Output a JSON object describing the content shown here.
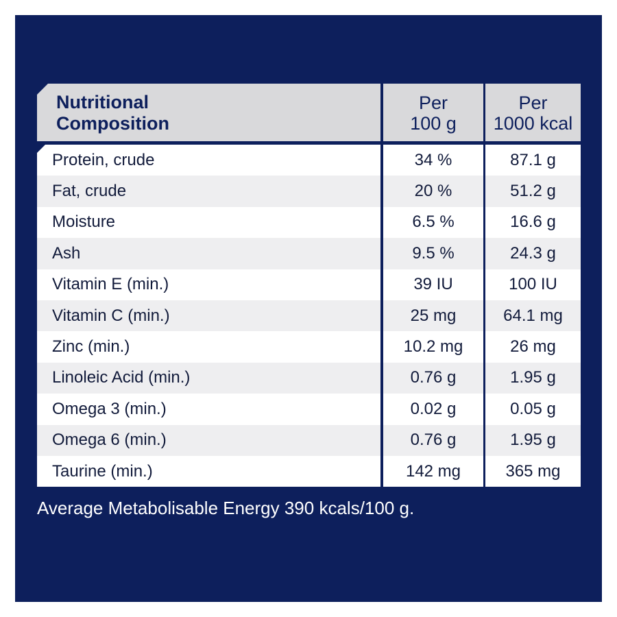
{
  "table": {
    "header": {
      "name_line1": "Nutritional",
      "name_line2": "Composition",
      "col1_line1": "Per",
      "col1_line2": "100 g",
      "col2_line1": "Per",
      "col2_line2": "1000 kcal"
    },
    "rows": [
      {
        "name": "Protein, crude",
        "per100": "34 %",
        "per1000": "87.1 g"
      },
      {
        "name": "Fat, crude",
        "per100": "20 %",
        "per1000": "51.2 g"
      },
      {
        "name": "Moisture",
        "per100": "6.5 %",
        "per1000": "16.6 g"
      },
      {
        "name": "Ash",
        "per100": "9.5 %",
        "per1000": "24.3 g"
      },
      {
        "name": "Vitamin E (min.)",
        "per100": "39 IU",
        "per1000": "100 IU"
      },
      {
        "name": "Vitamin C (min.)",
        "per100": "25 mg",
        "per1000": "64.1 mg"
      },
      {
        "name": "Zinc (min.)",
        "per100": "10.2 mg",
        "per1000": "26 mg"
      },
      {
        "name": "Linoleic Acid (min.)",
        "per100": "0.76 g",
        "per1000": "1.95 g"
      },
      {
        "name": "Omega 3 (min.)",
        "per100": "0.02 g",
        "per1000": "0.05 g"
      },
      {
        "name": "Omega 6 (min.)",
        "per100": "0.76 g",
        "per1000": "1.95 g"
      },
      {
        "name": "Taurine (min.)",
        "per100": "142 mg",
        "per1000": "365 mg"
      }
    ]
  },
  "footnote": "Average Metabolisable Energy 390 kcals/100 g.",
  "colors": {
    "panel_background": "#0d1f5c",
    "header_background": "#d9d9db",
    "row_alt_background": "#eeeef0"
  }
}
